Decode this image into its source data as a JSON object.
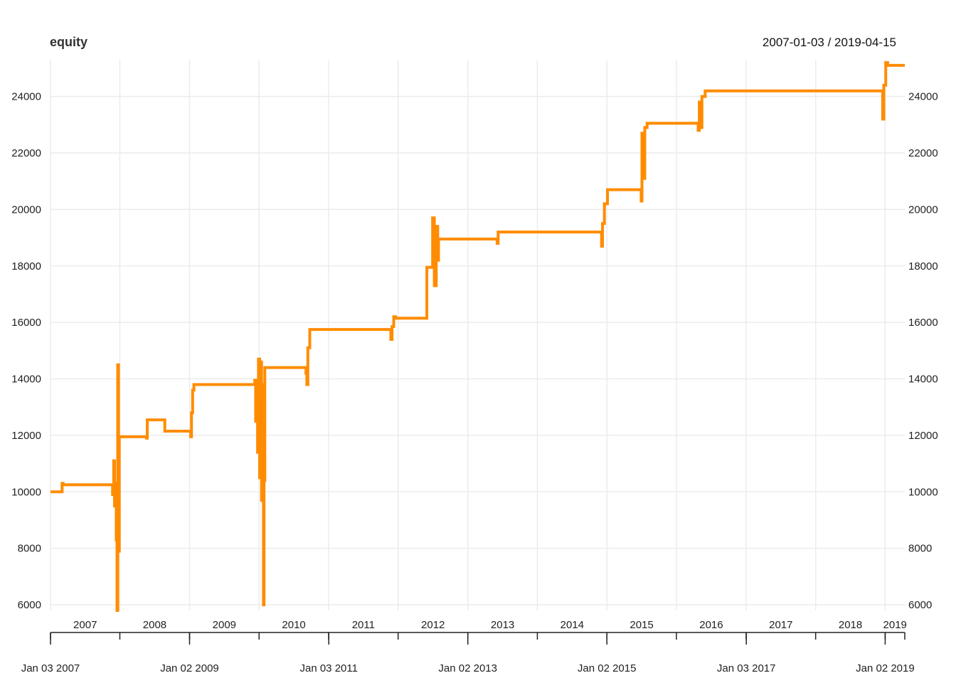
{
  "chart_data": {
    "type": "line",
    "title": "equity",
    "date_range": "2007-01-03 / 2019-04-15",
    "colors": {
      "series": "#ff8c00",
      "grid": "#ececec",
      "axis": "#222222"
    },
    "y_ticks": [
      "6000",
      "8000",
      "10000",
      "12000",
      "14000",
      "16000",
      "18000",
      "20000",
      "22000",
      "24000"
    ],
    "ylim": [
      5800,
      25300
    ],
    "year_labels": [
      "2007",
      "2008",
      "2009",
      "2010",
      "2011",
      "2012",
      "2013",
      "2014",
      "2015",
      "2016",
      "2017",
      "2018",
      "2019"
    ],
    "date_labels": [
      "Jan 03 2007",
      "Jan 02 2009",
      "Jan 03 2011",
      "Jan 02 2013",
      "Jan 02 2015",
      "Jan 03 2017",
      "Jan 02 2019"
    ],
    "grid": true,
    "series": [
      {
        "points": [
          [
            "2007-01-03",
            10000
          ],
          [
            "2007-03-01",
            10000
          ],
          [
            "2007-03-05",
            10300
          ],
          [
            "2007-03-10",
            10250
          ],
          [
            "2007-11-20",
            10250
          ],
          [
            "2007-11-25",
            9900
          ],
          [
            "2007-12-01",
            11100
          ],
          [
            "2007-12-05",
            9500
          ],
          [
            "2007-12-10",
            10300
          ],
          [
            "2007-12-14",
            8300
          ],
          [
            "2007-12-18",
            5800
          ],
          [
            "2007-12-22",
            14500
          ],
          [
            "2007-12-26",
            7900
          ],
          [
            "2007-12-30",
            11950
          ],
          [
            "2008-01-03",
            11950
          ],
          [
            "2008-05-20",
            11950
          ],
          [
            "2008-05-22",
            11900
          ],
          [
            "2008-05-25",
            12550
          ],
          [
            "2008-08-20",
            12550
          ],
          [
            "2008-08-25",
            12150
          ],
          [
            "2009-01-05",
            12150
          ],
          [
            "2009-01-08",
            11950
          ],
          [
            "2009-01-12",
            12800
          ],
          [
            "2009-01-18",
            13600
          ],
          [
            "2009-01-25",
            13800
          ],
          [
            "2009-12-05",
            13800
          ],
          [
            "2009-12-10",
            13950
          ],
          [
            "2009-12-15",
            12500
          ],
          [
            "2009-12-20",
            13200
          ],
          [
            "2009-12-25",
            11400
          ],
          [
            "2009-12-30",
            14700
          ],
          [
            "2010-01-05",
            10500
          ],
          [
            "2010-01-10",
            14600
          ],
          [
            "2010-01-15",
            9700
          ],
          [
            "2010-01-20",
            13800
          ],
          [
            "2010-01-25",
            6000
          ],
          [
            "2010-01-28",
            10400
          ],
          [
            "2010-02-01",
            14400
          ],
          [
            "2010-09-01",
            14400
          ],
          [
            "2010-09-05",
            14200
          ],
          [
            "2010-09-10",
            13800
          ],
          [
            "2010-09-15",
            15100
          ],
          [
            "2010-09-25",
            15750
          ],
          [
            "2011-11-20",
            15750
          ],
          [
            "2011-11-25",
            15400
          ],
          [
            "2011-12-01",
            15850
          ],
          [
            "2011-12-10",
            16200
          ],
          [
            "2011-12-20",
            16150
          ],
          [
            "2012-05-28",
            16150
          ],
          [
            "2012-06-01",
            17950
          ],
          [
            "2012-06-20",
            17950
          ],
          [
            "2012-07-01",
            19700
          ],
          [
            "2012-07-10",
            17300
          ],
          [
            "2012-07-20",
            19400
          ],
          [
            "2012-07-28",
            18200
          ],
          [
            "2012-08-01",
            18950
          ],
          [
            "2013-06-01",
            18950
          ],
          [
            "2013-06-05",
            18800
          ],
          [
            "2013-06-10",
            19200
          ],
          [
            "2014-12-01",
            19200
          ],
          [
            "2014-12-05",
            18700
          ],
          [
            "2014-12-10",
            19500
          ],
          [
            "2014-12-20",
            20200
          ],
          [
            "2015-01-05",
            20700
          ],
          [
            "2015-06-25",
            20700
          ],
          [
            "2015-07-01",
            20300
          ],
          [
            "2015-07-05",
            22700
          ],
          [
            "2015-07-10",
            21100
          ],
          [
            "2015-07-20",
            22900
          ],
          [
            "2015-08-01",
            23050
          ],
          [
            "2016-04-20",
            23050
          ],
          [
            "2016-04-25",
            22800
          ],
          [
            "2016-05-01",
            23800
          ],
          [
            "2016-05-08",
            22900
          ],
          [
            "2016-05-15",
            24000
          ],
          [
            "2016-06-01",
            24200
          ],
          [
            "2018-12-15",
            24200
          ],
          [
            "2018-12-20",
            23200
          ],
          [
            "2018-12-26",
            24400
          ],
          [
            "2019-01-05",
            25200
          ],
          [
            "2019-01-15",
            25100
          ],
          [
            "2019-04-15",
            25100
          ]
        ]
      }
    ]
  }
}
